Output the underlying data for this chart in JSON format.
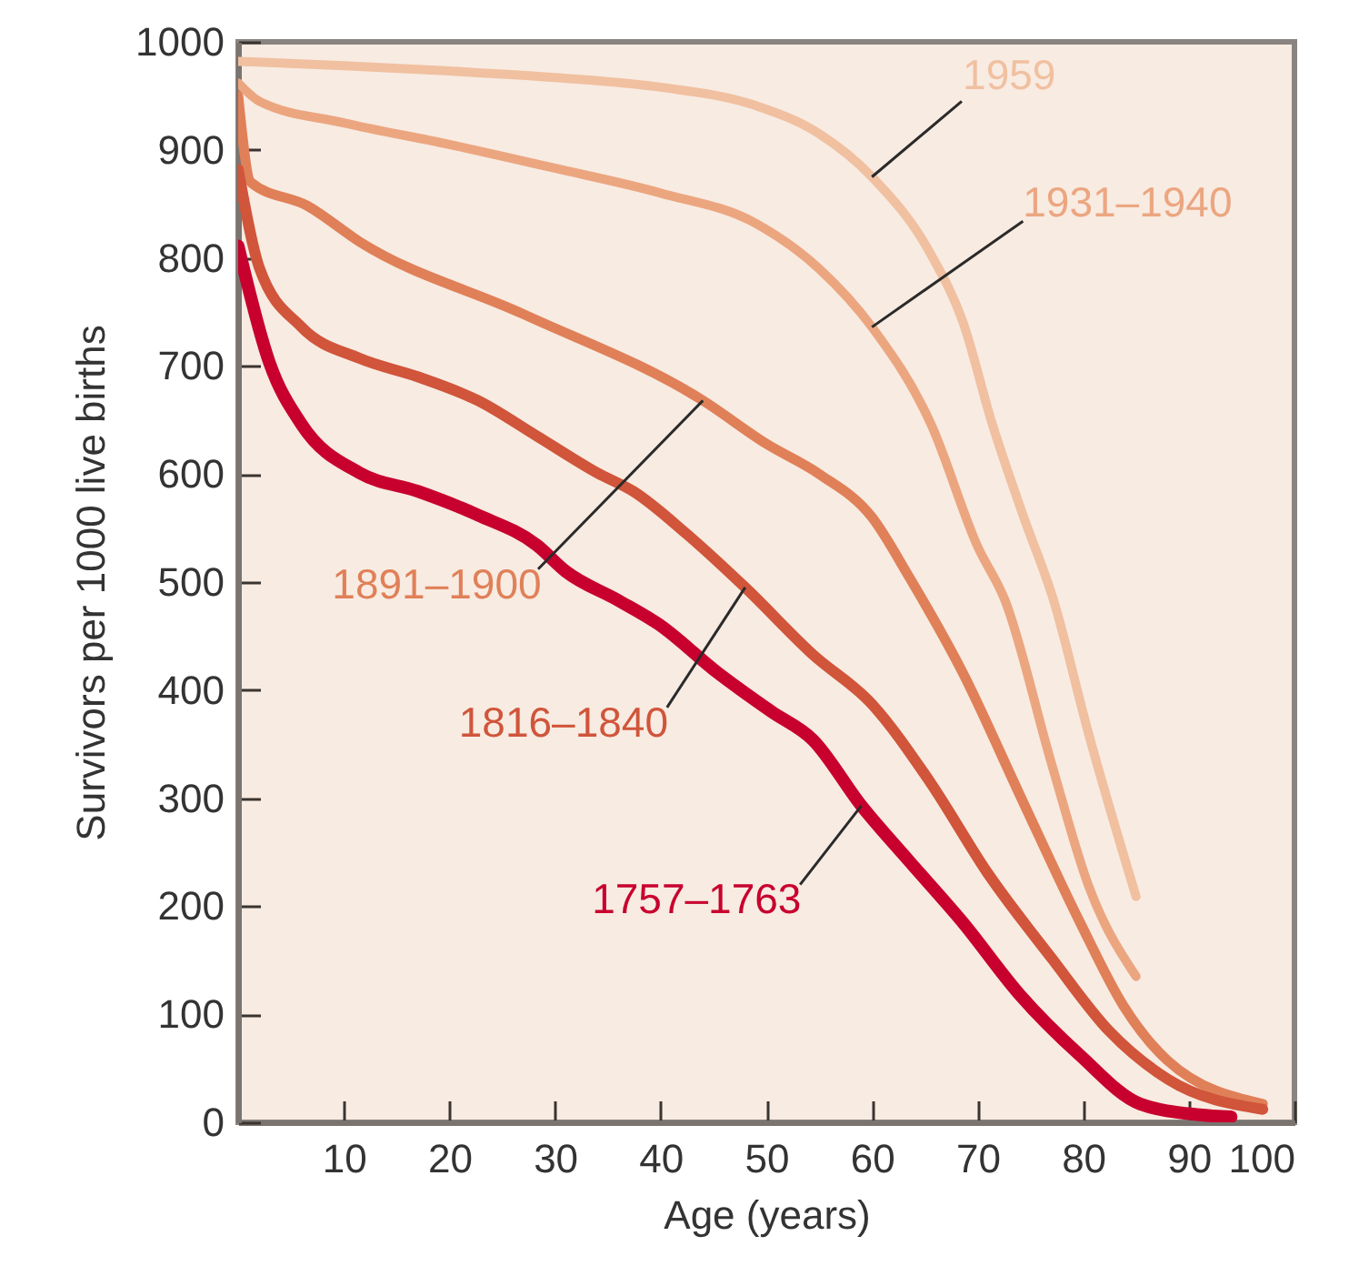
{
  "chart_data": {
    "type": "line",
    "xlabel": "Age (years)",
    "ylabel": "Survivors per 1000 live births",
    "xlim": [
      0,
      100
    ],
    "ylim": [
      0,
      1000
    ],
    "xticks": [
      10,
      20,
      30,
      40,
      50,
      60,
      70,
      80,
      90,
      100
    ],
    "yticks": [
      0,
      100,
      200,
      300,
      400,
      500,
      600,
      700,
      800,
      900,
      1000
    ],
    "series": [
      {
        "name": "1959",
        "color": "#f0c0a0",
        "x": [
          0,
          10,
          20,
          30,
          40,
          49,
          55,
          60,
          65.6,
          68.6,
          71.4,
          74.3,
          77.2,
          80.5,
          85
        ],
        "values": [
          982,
          978,
          973,
          967,
          958,
          941,
          915,
          875,
          803,
          741,
          646,
          562,
          483,
          360,
          209
        ]
      },
      {
        "name": "1931–1940",
        "color": "#eba680",
        "x": [
          0,
          2,
          10,
          20,
          30,
          40,
          49,
          55,
          60,
          65.6,
          70,
          72.6,
          77,
          80.5,
          85
        ],
        "values": [
          962,
          945,
          925,
          905,
          883,
          860,
          832,
          790,
          736,
          646,
          533,
          483,
          332,
          219,
          135
        ]
      },
      {
        "name": "1891–1900",
        "color": "#e08058",
        "x": [
          0,
          1.2,
          6.6,
          11.5,
          27,
          44,
          50,
          55,
          60,
          63.5,
          68.6,
          74,
          79.7,
          83.8,
          88,
          97
        ],
        "values": [
          950,
          870,
          848,
          815,
          748,
          668,
          628,
          600,
          560,
          505,
          416,
          303,
          185,
          108,
          57,
          17
        ]
      },
      {
        "name": "1816–1840",
        "color": "#d0553a",
        "x": [
          0,
          2,
          6,
          11.5,
          17,
          22.7,
          28.3,
          34,
          37.4,
          42.4,
          48,
          54.4,
          60,
          65.5,
          71,
          77,
          82.5,
          88,
          97
        ],
        "values": [
          882,
          791,
          736,
          707,
          690,
          668,
          635,
          601,
          584,
          545,
          495,
          433,
          387,
          315,
          230,
          152,
          84,
          40,
          12
        ]
      },
      {
        "name": "1757–1763",
        "color": "#c8002e",
        "x": [
          0,
          3,
          6,
          11.5,
          17,
          22.7,
          28.3,
          31,
          36,
          39.8,
          45.4,
          50.5,
          54.4,
          59,
          63.5,
          68.6,
          74,
          79.7,
          85.4,
          91,
          94
        ],
        "values": [
          811,
          702,
          646,
          601,
          584,
          562,
          534,
          510,
          483,
          461,
          416,
          380,
          354,
          293,
          242,
          185,
          118,
          62,
          17,
          7,
          5
        ]
      }
    ]
  }
}
